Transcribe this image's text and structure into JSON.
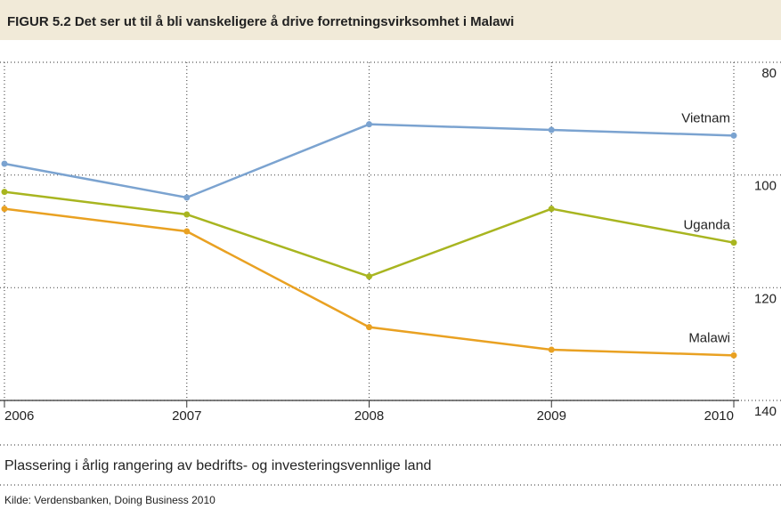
{
  "chart_data": {
    "type": "line",
    "title": "FIGUR 5.2 Det ser ut til å bli vanskeligere å drive forretningsvirksomhet i Malawi",
    "x": [
      2006,
      2007,
      2008,
      2009,
      2010
    ],
    "xlim": [
      2006,
      2010
    ],
    "xticks": [
      2006,
      2007,
      2008,
      2009,
      2010
    ],
    "series": [
      {
        "name": "Vietnam",
        "color": "#7ba3d0",
        "values": [
          98,
          104,
          91,
          92,
          93
        ]
      },
      {
        "name": "Uganda",
        "color": "#a8b520",
        "values": [
          103,
          107,
          118,
          106,
          112
        ]
      },
      {
        "name": "Malawi",
        "color": "#e9a122",
        "values": [
          106,
          110,
          127,
          131,
          132
        ]
      }
    ],
    "ylim": [
      80,
      140
    ],
    "y_inverted": true,
    "yticks": [
      80,
      100,
      120,
      140
    ],
    "grid": true,
    "x_label": "Plassering i årlig rangering av bedrifts- og investeringsvennlige land",
    "source": "Kilde: Verdensbanken, Doing Business 2010"
  }
}
